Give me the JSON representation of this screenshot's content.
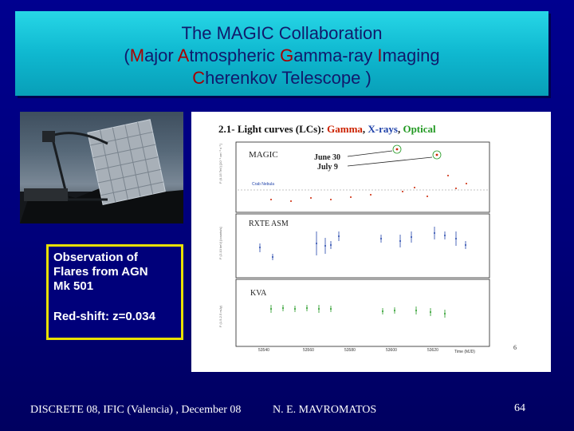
{
  "title": {
    "line1": "The MAGIC Collaboration",
    "line2": [
      "(",
      "M",
      "ajor ",
      "A",
      "tmospheric ",
      "G",
      "amma-ray ",
      "I",
      "maging"
    ],
    "line3": [
      "C",
      "herenkov Telescope )"
    ]
  },
  "observation": {
    "line1": "Observation of",
    "line2": "Flares from AGN",
    "line3": "Mk 501",
    "redshift": "Red-shift: z=0.034"
  },
  "figure": {
    "heading_prefix": "2.1- Light curves (LCs): ",
    "heading_gamma": "Gamma",
    "heading_xrays": "X-rays",
    "heading_optical": "Optical",
    "panel1_label": "MAGIC",
    "panel1_sublabel": "Crab Nebula",
    "annot1": "June 30",
    "annot2": "July 9",
    "panel2_label": "RXTE ASM",
    "panel3_label": "KVA",
    "x_ticks": [
      "53540",
      "53560",
      "53580",
      "53600",
      "53620"
    ],
    "x_axis_label": "Time (MJD)",
    "page_mark": "6",
    "colors": {
      "gamma": "#cc2200",
      "xrays": "#2244aa",
      "optical": "#229922"
    }
  },
  "footer": {
    "left": "DISCRETE 08, IFIC (Valencia) , December 08",
    "center": "N. E. MAVROMATOS",
    "page": "64"
  }
}
